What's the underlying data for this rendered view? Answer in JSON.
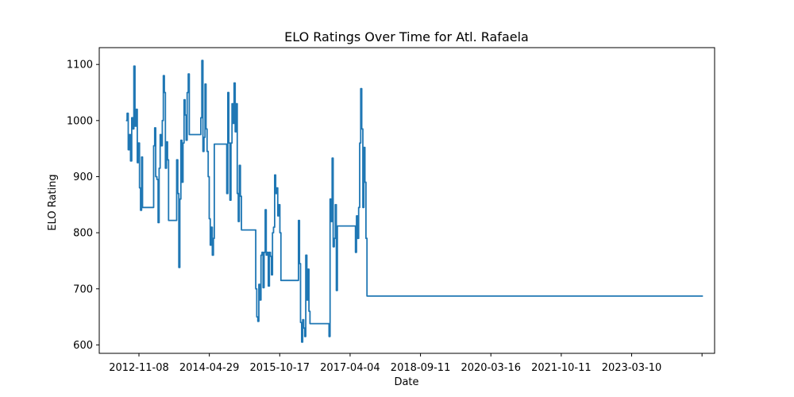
{
  "chart_data": {
    "type": "line",
    "title": "ELO Ratings Over Time for Atl. Rafaela",
    "xlabel": "Date",
    "ylabel": "ELO Rating",
    "x_ticks": [
      "2012-11-08",
      "2014-04-29",
      "2015-10-17",
      "2017-04-04",
      "2018-09-11",
      "2020-03-16",
      "2021-10-11",
      "2023-03-10",
      ""
    ],
    "y_ticks": [
      600,
      700,
      800,
      900,
      1000,
      1100
    ],
    "ylim": [
      585,
      1130
    ],
    "grid": false,
    "line_color": "#1f77b4",
    "series": [
      {
        "points": [
          [
            "2012-08-01",
            1000
          ],
          [
            "2012-08-10",
            1013
          ],
          [
            "2012-08-18",
            948
          ],
          [
            "2012-08-27",
            975
          ],
          [
            "2012-09-05",
            928
          ],
          [
            "2012-09-14",
            1005
          ],
          [
            "2012-09-22",
            985
          ],
          [
            "2012-09-30",
            1097
          ],
          [
            "2012-10-09",
            990
          ],
          [
            "2012-10-17",
            1020
          ],
          [
            "2012-10-26",
            925
          ],
          [
            "2012-11-03",
            960
          ],
          [
            "2012-11-12",
            880
          ],
          [
            "2012-11-20",
            840
          ],
          [
            "2012-11-28",
            935
          ],
          [
            "2012-12-05",
            845
          ],
          [
            "2013-02-20",
            845
          ],
          [
            "2013-02-28",
            955
          ],
          [
            "2013-03-08",
            987
          ],
          [
            "2013-03-16",
            900
          ],
          [
            "2013-03-25",
            895
          ],
          [
            "2013-04-03",
            818
          ],
          [
            "2013-04-11",
            915
          ],
          [
            "2013-04-19",
            975
          ],
          [
            "2013-04-27",
            955
          ],
          [
            "2013-05-05",
            1000
          ],
          [
            "2013-05-13",
            1080
          ],
          [
            "2013-05-21",
            1050
          ],
          [
            "2013-05-29",
            915
          ],
          [
            "2013-06-06",
            962
          ],
          [
            "2013-06-14",
            930
          ],
          [
            "2013-06-22",
            822
          ],
          [
            "2013-08-15",
            822
          ],
          [
            "2013-08-23",
            930
          ],
          [
            "2013-08-31",
            870
          ],
          [
            "2013-09-08",
            738
          ],
          [
            "2013-09-16",
            860
          ],
          [
            "2013-09-24",
            965
          ],
          [
            "2013-10-02",
            890
          ],
          [
            "2013-10-10",
            960
          ],
          [
            "2013-10-18",
            1037
          ],
          [
            "2013-10-26",
            1010
          ],
          [
            "2013-11-03",
            965
          ],
          [
            "2013-11-11",
            1050
          ],
          [
            "2013-11-19",
            1083
          ],
          [
            "2013-11-27",
            975
          ],
          [
            "2014-02-15",
            975
          ],
          [
            "2014-02-23",
            1005
          ],
          [
            "2014-03-03",
            1107
          ],
          [
            "2014-03-11",
            945
          ],
          [
            "2014-03-19",
            970
          ],
          [
            "2014-03-27",
            1065
          ],
          [
            "2014-04-04",
            985
          ],
          [
            "2014-04-12",
            945
          ],
          [
            "2014-04-20",
            900
          ],
          [
            "2014-04-28",
            825
          ],
          [
            "2014-05-06",
            778
          ],
          [
            "2014-05-14",
            810
          ],
          [
            "2014-05-22",
            760
          ],
          [
            "2014-05-30",
            790
          ],
          [
            "2014-06-06",
            958
          ],
          [
            "2014-09-01",
            958
          ],
          [
            "2014-09-09",
            870
          ],
          [
            "2014-09-17",
            1050
          ],
          [
            "2014-09-25",
            960
          ],
          [
            "2014-10-03",
            858
          ],
          [
            "2014-10-11",
            960
          ],
          [
            "2014-10-19",
            1030
          ],
          [
            "2014-10-27",
            995
          ],
          [
            "2014-11-04",
            1067
          ],
          [
            "2014-11-12",
            980
          ],
          [
            "2014-11-20",
            1030
          ],
          [
            "2014-11-28",
            870
          ],
          [
            "2014-12-06",
            820
          ],
          [
            "2014-12-14",
            920
          ],
          [
            "2014-12-22",
            865
          ],
          [
            "2014-12-30",
            805
          ],
          [
            "2015-04-10",
            805
          ],
          [
            "2015-04-18",
            700
          ],
          [
            "2015-04-26",
            650
          ],
          [
            "2015-05-04",
            642
          ],
          [
            "2015-05-12",
            708
          ],
          [
            "2015-05-20",
            680
          ],
          [
            "2015-05-28",
            760
          ],
          [
            "2015-06-05",
            765
          ],
          [
            "2015-06-13",
            702
          ],
          [
            "2015-06-21",
            765
          ],
          [
            "2015-06-29",
            841
          ],
          [
            "2015-07-07",
            760
          ],
          [
            "2015-07-15",
            765
          ],
          [
            "2015-07-23",
            705
          ],
          [
            "2015-07-31",
            765
          ],
          [
            "2015-08-08",
            758
          ],
          [
            "2015-08-16",
            725
          ],
          [
            "2015-08-24",
            800
          ],
          [
            "2015-09-01",
            810
          ],
          [
            "2015-09-09",
            903
          ],
          [
            "2015-09-17",
            870
          ],
          [
            "2015-09-25",
            880
          ],
          [
            "2015-10-03",
            830
          ],
          [
            "2015-10-11",
            850
          ],
          [
            "2015-10-19",
            800
          ],
          [
            "2015-10-27",
            715
          ],
          [
            "2016-03-01",
            715
          ],
          [
            "2016-03-09",
            822
          ],
          [
            "2016-03-17",
            745
          ],
          [
            "2016-03-25",
            640
          ],
          [
            "2016-04-02",
            605
          ],
          [
            "2016-04-10",
            645
          ],
          [
            "2016-04-18",
            630
          ],
          [
            "2016-04-26",
            615
          ],
          [
            "2016-05-04",
            760
          ],
          [
            "2016-05-12",
            680
          ],
          [
            "2016-05-20",
            735
          ],
          [
            "2016-05-28",
            660
          ],
          [
            "2016-06-05",
            638
          ],
          [
            "2016-10-20",
            638
          ],
          [
            "2016-10-28",
            615
          ],
          [
            "2016-11-05",
            860
          ],
          [
            "2016-11-13",
            820
          ],
          [
            "2016-11-21",
            933
          ],
          [
            "2016-11-29",
            775
          ],
          [
            "2016-12-07",
            790
          ],
          [
            "2016-12-15",
            850
          ],
          [
            "2016-12-23",
            697
          ],
          [
            "2016-12-31",
            812
          ],
          [
            "2017-05-10",
            812
          ],
          [
            "2017-05-18",
            765
          ],
          [
            "2017-05-26",
            830
          ],
          [
            "2017-06-03",
            790
          ],
          [
            "2017-06-11",
            845
          ],
          [
            "2017-06-19",
            960
          ],
          [
            "2017-06-27",
            1057
          ],
          [
            "2017-07-05",
            985
          ],
          [
            "2017-07-13",
            845
          ],
          [
            "2017-07-21",
            952
          ],
          [
            "2017-07-29",
            890
          ],
          [
            "2017-08-06",
            790
          ],
          [
            "2017-08-14",
            687
          ],
          [
            "2024-08-20",
            687
          ]
        ]
      }
    ]
  }
}
